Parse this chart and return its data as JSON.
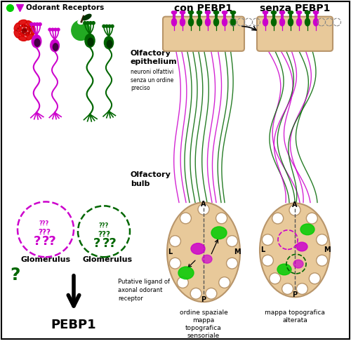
{
  "background_color": "#ffffff",
  "legend_dot_color": "#00cc00",
  "legend_triangle_color": "#cc00cc",
  "legend_text": "Odorant Receptors",
  "con_pebp1_label": "con PEBP1",
  "senza_pebp1_label": "senza PEBP1",
  "olfactory_epithelium_label": "Olfactory\nepithelium",
  "epithelium_sub_label": "neuroni olfattivi\nsenza un ordine\npreciso",
  "olfactory_bulb_label": "Olfactory\nbulb",
  "glomerulus1_label": "Glomerulus",
  "glomerulus2_label": "Glomerulus",
  "putative_label": "Putative ligand of\naxonal odorant\nreceptor",
  "pebp1_label": "PEBP1",
  "ordine_label": "ordine spaziale\nmappa\ntopografica\nsensoriale",
  "mappa_label": "mappa topografica\nalterata",
  "magenta": "#cc00cc",
  "green_dark": "#006600",
  "green_bright": "#00cc00",
  "rose_color": "#dd0000",
  "apple_color": "#22aa22",
  "bulb_fill": "#e8c99a",
  "bulb_edge": "#b8956a",
  "epi_fill": "#e8c99a",
  "epi_edge": "#b8956a"
}
